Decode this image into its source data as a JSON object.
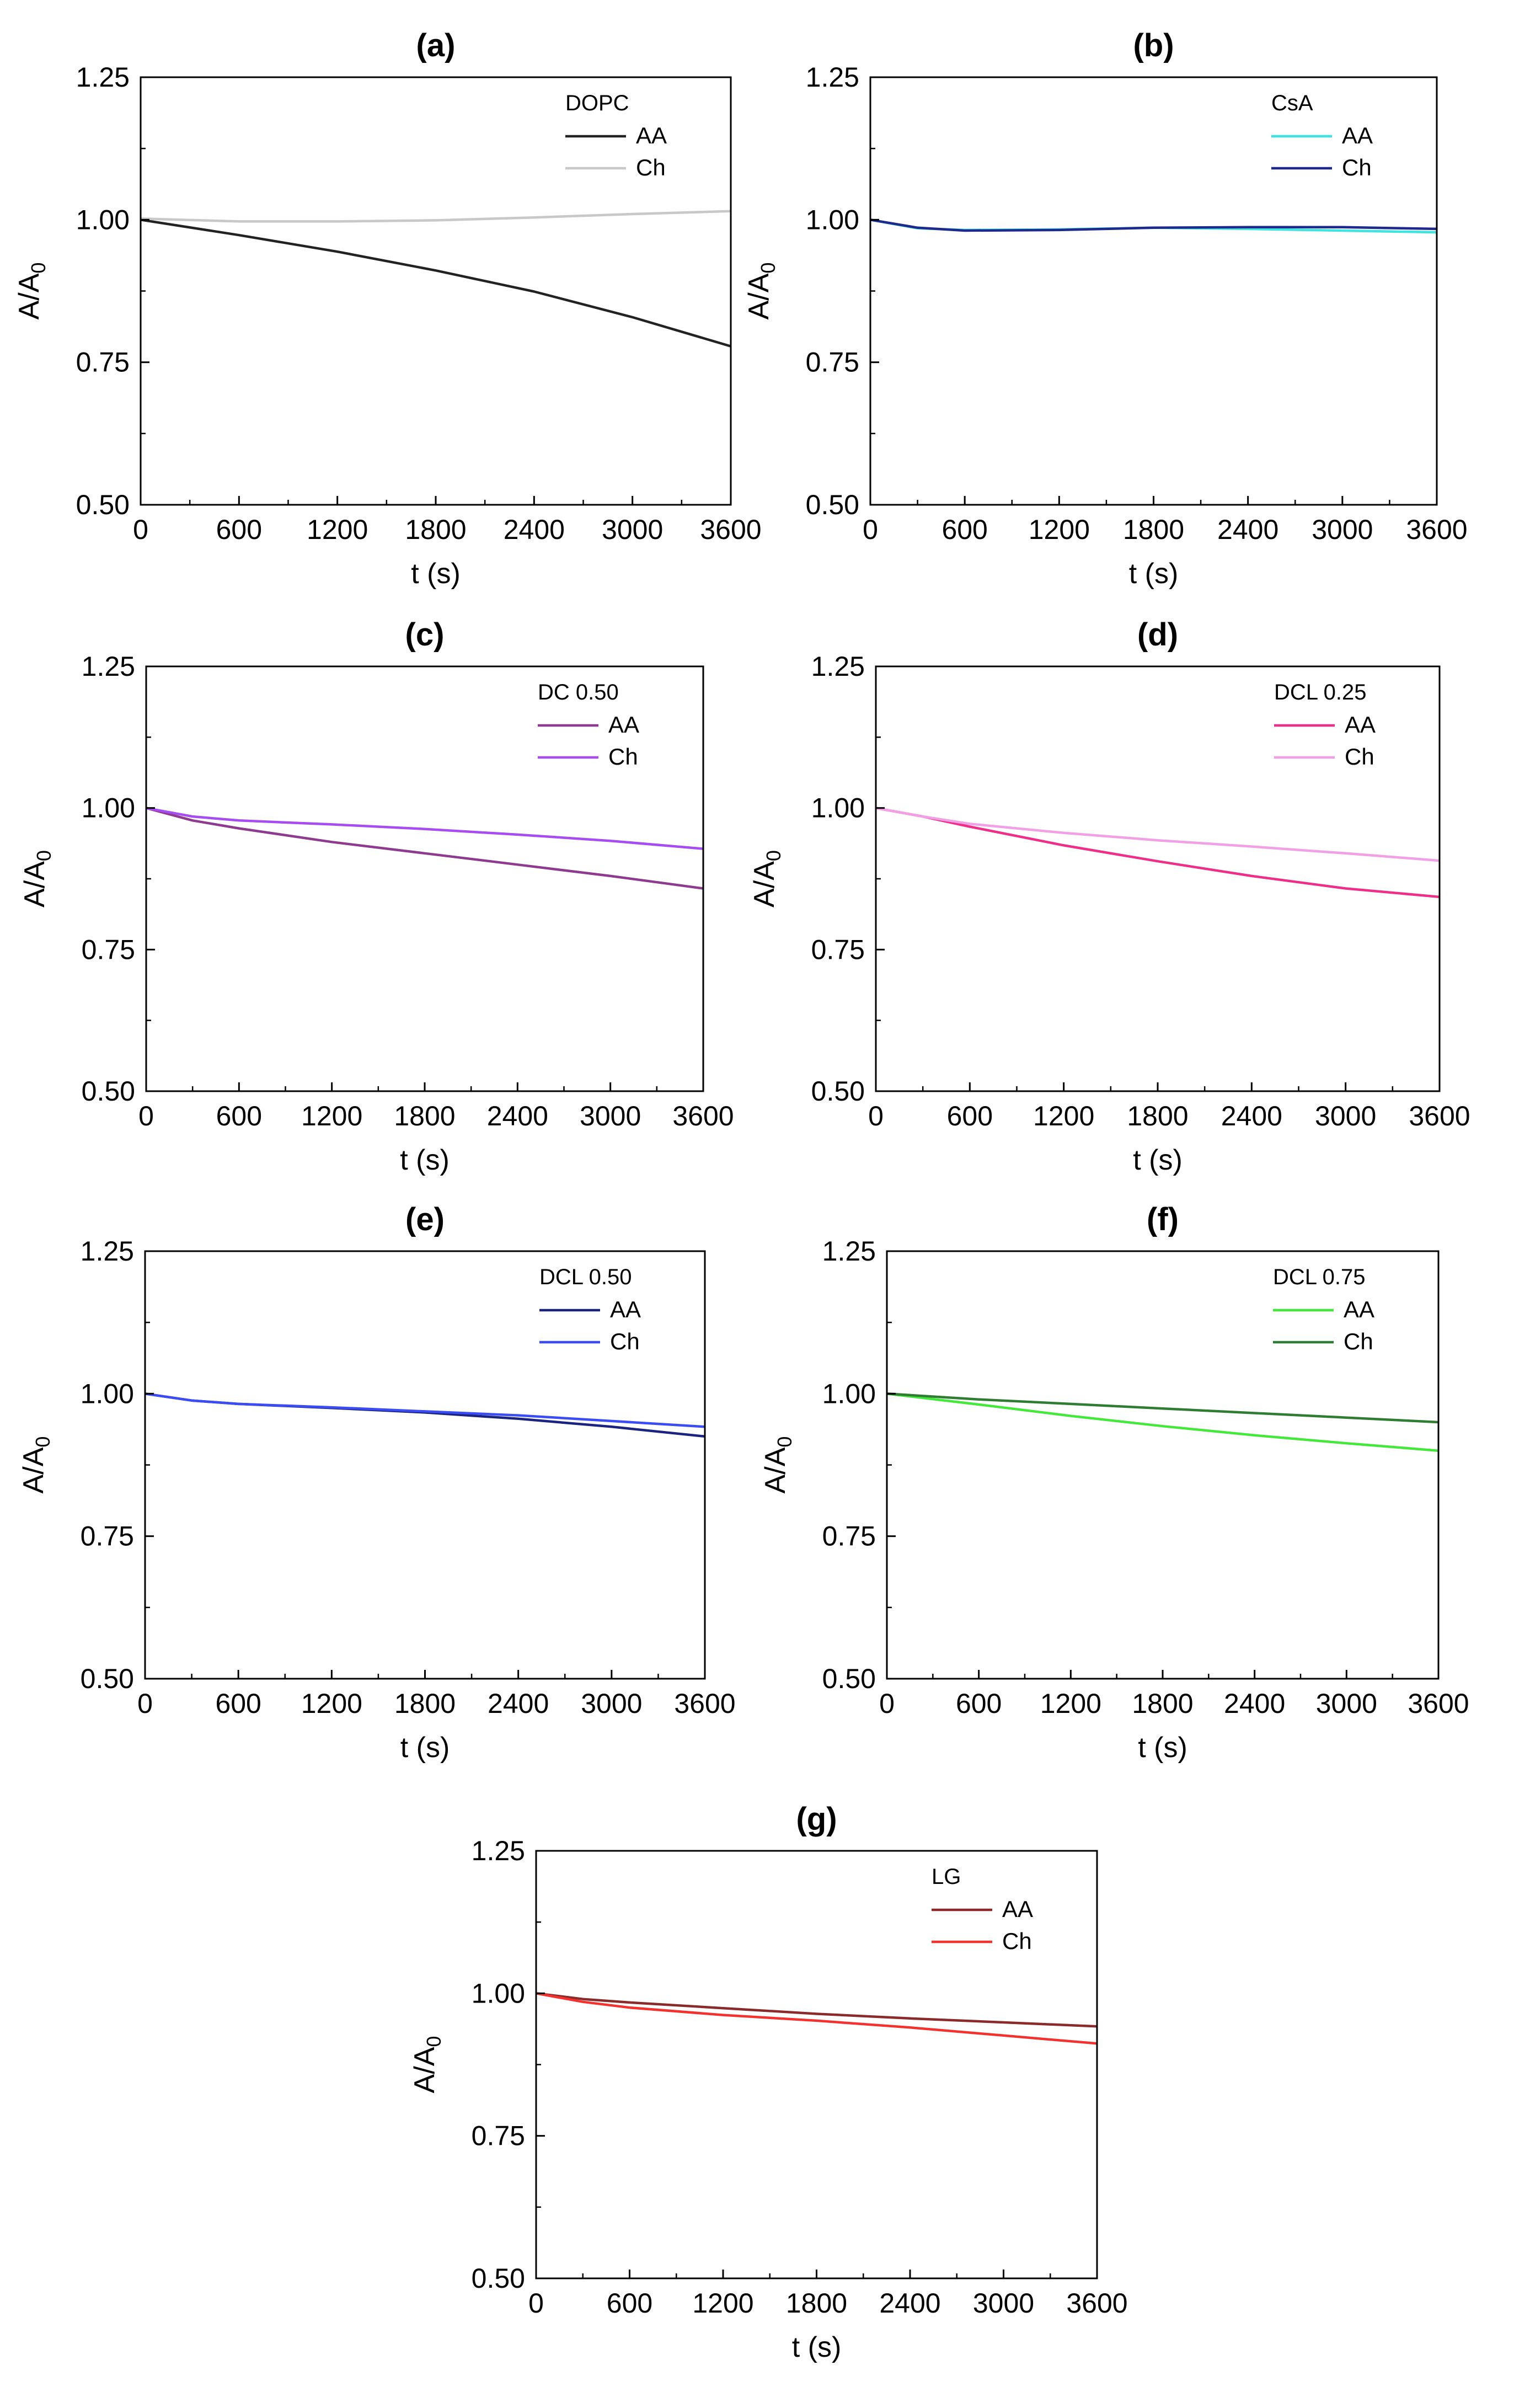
{
  "chart_data": [
    {
      "panel": "(a)",
      "type": "line",
      "legend_title": "DOPC",
      "xlabel": "t (s)",
      "ylabel": "A/A0",
      "ylabel_main": "A/A",
      "ylabel_sub": "0",
      "xlim": [
        0,
        3600
      ],
      "ylim": [
        0.5,
        1.25
      ],
      "xticks": [
        "0",
        "600",
        "1200",
        "1800",
        "2400",
        "3000",
        "3600"
      ],
      "yticks": [
        "0.50",
        "0.75",
        "1.00",
        "1.25"
      ],
      "x": [
        0,
        600,
        1200,
        1800,
        2400,
        3000,
        3600
      ],
      "series": [
        {
          "name": "AA",
          "color": "#222222",
          "values": [
            1.0,
            0.973,
            0.944,
            0.911,
            0.874,
            0.829,
            0.778
          ]
        },
        {
          "name": "Ch",
          "color": "#c8c8c8",
          "values": [
            1.002,
            0.997,
            0.997,
            0.999,
            1.004,
            1.01,
            1.015
          ]
        }
      ]
    },
    {
      "panel": "(b)",
      "type": "line",
      "legend_title": "CsA",
      "xlabel": "t (s)",
      "ylabel": "A/A0",
      "ylabel_main": "A/A",
      "ylabel_sub": "0",
      "xlim": [
        0,
        3600
      ],
      "ylim": [
        0.5,
        1.25
      ],
      "xticks": [
        "0",
        "600",
        "1200",
        "1800",
        "2400",
        "3000",
        "3600"
      ],
      "yticks": [
        "0.50",
        "0.75",
        "1.00",
        "1.25"
      ],
      "x": [
        0,
        300,
        600,
        1200,
        1800,
        2400,
        3000,
        3600
      ],
      "series": [
        {
          "name": "AA",
          "color": "#3fe3e0",
          "values": [
            1.0,
            0.985,
            0.982,
            0.983,
            0.986,
            0.984,
            0.981,
            0.978
          ]
        },
        {
          "name": "Ch",
          "color": "#1d2a8c",
          "values": [
            1.0,
            0.986,
            0.981,
            0.982,
            0.986,
            0.987,
            0.987,
            0.984
          ]
        }
      ]
    },
    {
      "panel": "(c)",
      "type": "line",
      "legend_title": "DC 0.50",
      "xlabel": "t (s)",
      "ylabel": "A/A0",
      "ylabel_main": "A/A",
      "ylabel_sub": "0",
      "xlim": [
        0,
        3600
      ],
      "ylim": [
        0.5,
        1.25
      ],
      "xticks": [
        "0",
        "600",
        "1200",
        "1800",
        "2400",
        "3000",
        "3600"
      ],
      "yticks": [
        "0.50",
        "0.75",
        "1.00",
        "1.25"
      ],
      "x": [
        0,
        300,
        600,
        1200,
        1800,
        2400,
        3000,
        3600
      ],
      "series": [
        {
          "name": "AA",
          "color": "#8e3a8e",
          "values": [
            1.0,
            0.978,
            0.964,
            0.94,
            0.92,
            0.9,
            0.88,
            0.858
          ]
        },
        {
          "name": "Ch",
          "color": "#a64cf0",
          "values": [
            1.0,
            0.985,
            0.978,
            0.971,
            0.963,
            0.953,
            0.942,
            0.928
          ]
        }
      ]
    },
    {
      "panel": "(d)",
      "type": "line",
      "legend_title": "DCL 0.25",
      "xlabel": "t (s)",
      "ylabel": "A/A0",
      "ylabel_main": "A/A",
      "ylabel_sub": "0",
      "xlim": [
        0,
        3600
      ],
      "ylim": [
        0.5,
        1.25
      ],
      "xticks": [
        "0",
        "600",
        "1200",
        "1800",
        "2400",
        "3000",
        "3600"
      ],
      "yticks": [
        "0.50",
        "0.75",
        "1.00",
        "1.25"
      ],
      "x": [
        0,
        300,
        600,
        1200,
        1800,
        2400,
        3000,
        3600
      ],
      "series": [
        {
          "name": "AA",
          "color": "#ee2f8a",
          "values": [
            1.0,
            0.985,
            0.967,
            0.934,
            0.906,
            0.88,
            0.858,
            0.843
          ]
        },
        {
          "name": "Ch",
          "color": "#f2a0e6",
          "values": [
            1.0,
            0.985,
            0.972,
            0.956,
            0.943,
            0.932,
            0.92,
            0.907
          ]
        }
      ]
    },
    {
      "panel": "(e)",
      "type": "line",
      "legend_title": "DCL 0.50",
      "xlabel": "t (s)",
      "ylabel": "A/A0",
      "ylabel_main": "A/A",
      "ylabel_sub": "0",
      "xlim": [
        0,
        3600
      ],
      "ylim": [
        0.5,
        1.25
      ],
      "xticks": [
        "0",
        "600",
        "1200",
        "1800",
        "2400",
        "3000",
        "3600"
      ],
      "yticks": [
        "0.50",
        "0.75",
        "1.00",
        "1.25"
      ],
      "x": [
        0,
        300,
        600,
        1200,
        1800,
        2400,
        3000,
        3600
      ],
      "series": [
        {
          "name": "AA",
          "color": "#1a237e",
          "values": [
            1.0,
            0.988,
            0.982,
            0.975,
            0.967,
            0.956,
            0.942,
            0.925
          ]
        },
        {
          "name": "Ch",
          "color": "#3a4cf2",
          "values": [
            1.0,
            0.988,
            0.982,
            0.976,
            0.969,
            0.962,
            0.952,
            0.942
          ]
        }
      ]
    },
    {
      "panel": "(f)",
      "type": "line",
      "legend_title": "DCL 0.75",
      "xlabel": "t (s)",
      "ylabel": "A/A0",
      "ylabel_main": "A/A",
      "ylabel_sub": "0",
      "xlim": [
        0,
        3600
      ],
      "ylim": [
        0.5,
        1.25
      ],
      "xticks": [
        "0",
        "600",
        "1200",
        "1800",
        "2400",
        "3000",
        "3600"
      ],
      "yticks": [
        "0.50",
        "0.75",
        "1.00",
        "1.25"
      ],
      "x": [
        0,
        600,
        1200,
        1800,
        2400,
        3000,
        3600
      ],
      "series": [
        {
          "name": "AA",
          "color": "#44e83a",
          "values": [
            1.0,
            0.981,
            0.961,
            0.943,
            0.927,
            0.913,
            0.9
          ]
        },
        {
          "name": "Ch",
          "color": "#2e7d32",
          "values": [
            1.0,
            0.99,
            0.982,
            0.974,
            0.966,
            0.958,
            0.95
          ]
        }
      ]
    },
    {
      "panel": "(g)",
      "type": "line",
      "legend_title": "LG",
      "xlabel": "t (s)",
      "ylabel": "A/A0",
      "ylabel_main": "A/A",
      "ylabel_sub": "0",
      "xlim": [
        0,
        3600
      ],
      "ylim": [
        0.5,
        1.25
      ],
      "xticks": [
        "0",
        "600",
        "1200",
        "1800",
        "2400",
        "3000",
        "3600"
      ],
      "yticks": [
        "0.50",
        "0.75",
        "1.00",
        "1.25"
      ],
      "x": [
        0,
        300,
        600,
        1200,
        1800,
        2400,
        3000,
        3600
      ],
      "series": [
        {
          "name": "AA",
          "color": "#8b2a2a",
          "values": [
            1.0,
            0.99,
            0.984,
            0.974,
            0.964,
            0.956,
            0.949,
            0.942
          ]
        },
        {
          "name": "Ch",
          "color": "#f2322e",
          "values": [
            1.0,
            0.985,
            0.975,
            0.962,
            0.952,
            0.94,
            0.926,
            0.912
          ]
        }
      ]
    }
  ]
}
